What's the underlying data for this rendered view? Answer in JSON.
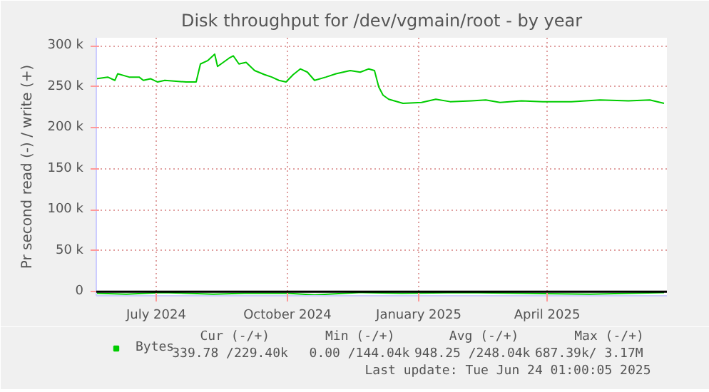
{
  "chart_data": {
    "type": "line",
    "title": "Disk throughput for /dev/vgmain/root - by year",
    "ylabel": "Pr second read (-) / write (+)",
    "xlim": [
      "2024-05-20",
      "2025-06-24"
    ],
    "xticks": [
      {
        "value": "2024-07-01",
        "label": "July 2024"
      },
      {
        "value": "2024-10-01",
        "label": "October 2024"
      },
      {
        "value": "2025-01-01",
        "label": "January 2025"
      },
      {
        "value": "2025-04-01",
        "label": "April 2025"
      }
    ],
    "ylim": [
      -5000,
      310000
    ],
    "yticks": [
      0,
      {
        "value": 50000,
        "label": "50 k"
      },
      {
        "value": 100000,
        "label": "100 k"
      },
      {
        "value": 150000,
        "label": "150 k"
      },
      {
        "value": 200000,
        "label": "200 k"
      },
      {
        "value": 250000,
        "label": "250 k"
      },
      {
        "value": 300000,
        "label": "300 k"
      }
    ],
    "grid": true,
    "legend": "bottom",
    "marker": "none",
    "line_style": "solid",
    "series": [
      {
        "name": "Bytes",
        "color": "#00cc00",
        "x": [
          "2024-05-20",
          "2024-05-28",
          "2024-06-02",
          "2024-06-04",
          "2024-06-12",
          "2024-06-19",
          "2024-06-22",
          "2024-06-27",
          "2024-07-02",
          "2024-07-07",
          "2024-07-15",
          "2024-07-22",
          "2024-07-29",
          "2024-08-01",
          "2024-08-06",
          "2024-08-11",
          "2024-08-13",
          "2024-08-21",
          "2024-08-24",
          "2024-08-28",
          "2024-09-02",
          "2024-09-08",
          "2024-09-15",
          "2024-09-20",
          "2024-09-25",
          "2024-09-30",
          "2024-10-05",
          "2024-10-10",
          "2024-10-15",
          "2024-10-20",
          "2024-10-28",
          "2024-11-04",
          "2024-11-14",
          "2024-11-21",
          "2024-11-27",
          "2024-12-01",
          "2024-12-04",
          "2024-12-07",
          "2024-12-11",
          "2024-12-21",
          "2025-01-03",
          "2025-01-13",
          "2025-01-23",
          "2025-02-07",
          "2025-02-17",
          "2025-02-27",
          "2025-03-14",
          "2025-03-29",
          "2025-04-18",
          "2025-05-08",
          "2025-05-28",
          "2025-06-12",
          "2025-06-22"
        ],
        "values": [
          260000,
          262000,
          258000,
          266000,
          262000,
          262000,
          258000,
          260000,
          256000,
          258000,
          257000,
          256000,
          256000,
          278000,
          282000,
          290000,
          275000,
          285000,
          288000,
          278000,
          280000,
          270000,
          265000,
          262000,
          258000,
          256000,
          265000,
          272000,
          268000,
          258000,
          262000,
          266000,
          270000,
          268000,
          272000,
          270000,
          250000,
          240000,
          235000,
          230000,
          231000,
          235000,
          232000,
          233000,
          234000,
          231000,
          233000,
          232000,
          232000,
          234000,
          233000,
          234000,
          230000
        ]
      },
      {
        "color": "#00cc00",
        "x": [
          "2024-05-20",
          "2024-06-10",
          "2024-07-05",
          "2024-08-10",
          "2024-09-01",
          "2024-10-01",
          "2024-10-20",
          "2024-11-20",
          "2024-12-20",
          "2025-02-01",
          "2025-03-15",
          "2025-05-01",
          "2025-06-22"
        ],
        "values": [
          -2000,
          -3000,
          -1000,
          -3000,
          -2000,
          -2000,
          -4000,
          -1000,
          -2000,
          -1000,
          -2000,
          -3000,
          -1000
        ]
      }
    ],
    "ref_lines": [
      {
        "axis": "y",
        "value": 0,
        "color": "#000000"
      }
    ],
    "annotations": [
      "Cur (-/+)",
      "Min (-/+)",
      "Avg (-/+)",
      "Max (-/+)",
      "339.78 /229.40k",
      "0.00 /144.04k",
      "948.25 /248.04k",
      "687.39k/  3.17M",
      "Last update: Tue Jun 24 01:00:05 2025"
    ]
  }
}
